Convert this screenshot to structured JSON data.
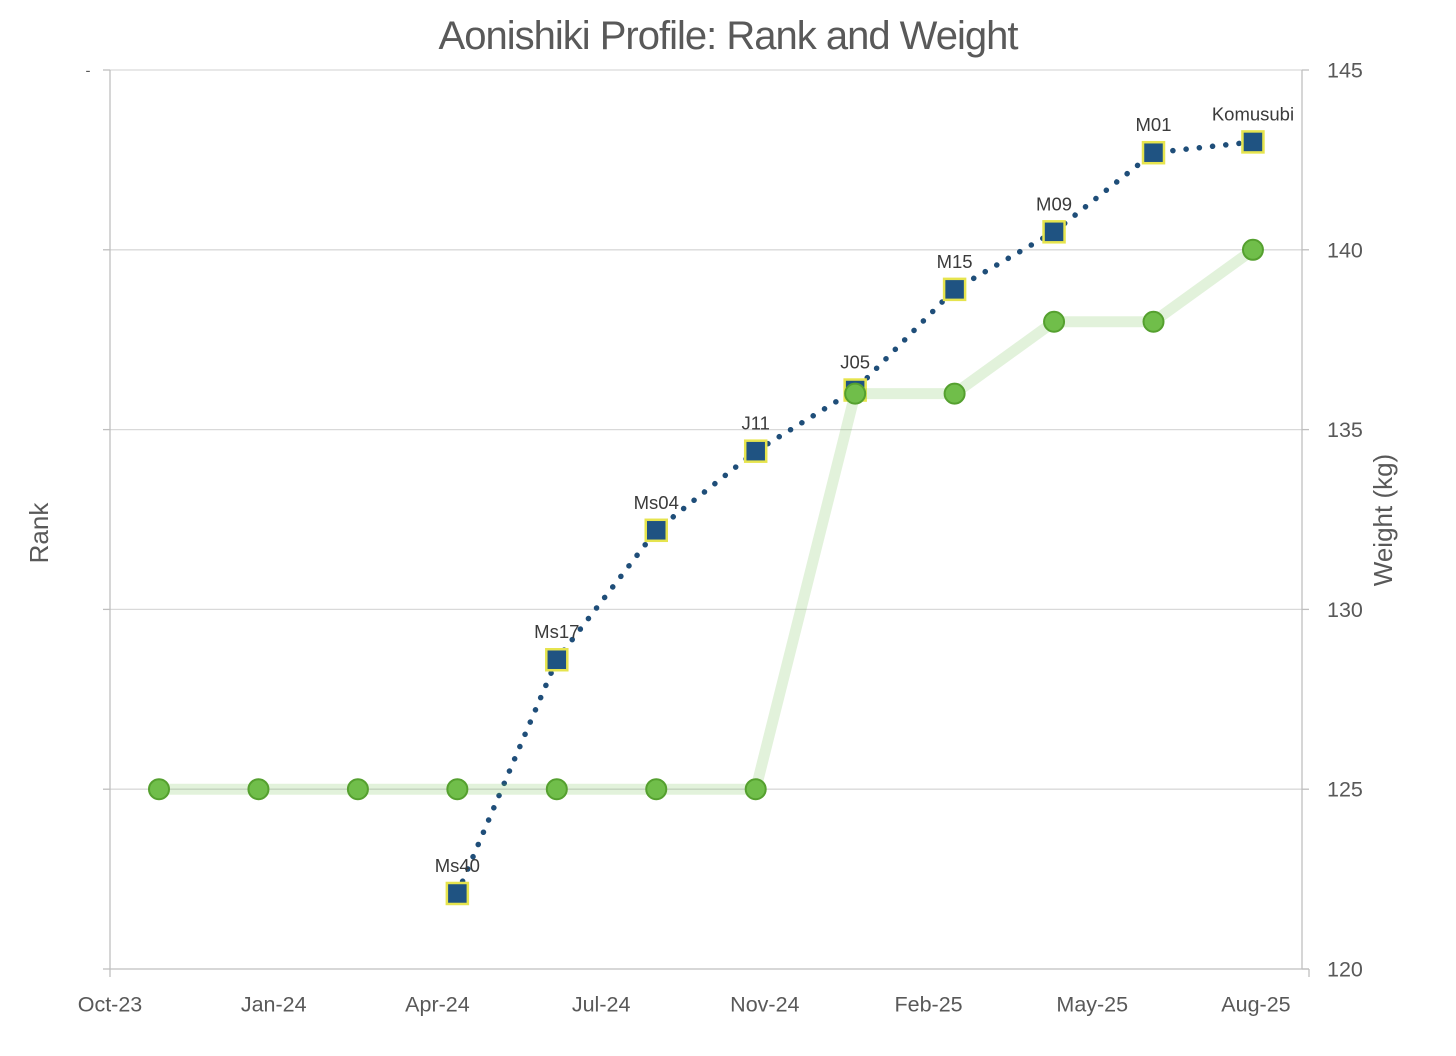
{
  "chart_data": {
    "type": "line",
    "title": "Aonishiki Profile: Rank and Weight",
    "legend": "none",
    "x_axis": {
      "tick_labels": [
        "Oct-23",
        "Jan-24",
        "Apr-24",
        "Jul-24",
        "Nov-24",
        "Feb-25",
        "May-25",
        "Aug-25"
      ],
      "n_slots": 12
    },
    "y_left": {
      "label": "Rank",
      "tick_label_shown": "-",
      "numeric_labels_hidden": true
    },
    "y_right": {
      "label": "Weight (kg)",
      "min": 120,
      "max": 145,
      "ticks": [
        145,
        140,
        135,
        130,
        125,
        120
      ],
      "grid": true
    },
    "series": [
      {
        "name": "Rank",
        "type": "line-dotted",
        "marker": "square",
        "axis": "left-hidden",
        "pos_note": "pos = plotted height read off the right (weight) axis scale, since left rank axis labels are hidden",
        "points": [
          {
            "slot": 3,
            "label": "Ms40",
            "pos": 122.1
          },
          {
            "slot": 4,
            "label": "Ms17",
            "pos": 128.6
          },
          {
            "slot": 5,
            "label": "Ms04",
            "pos": 132.2
          },
          {
            "slot": 6,
            "label": "J11",
            "pos": 134.4
          },
          {
            "slot": 7,
            "label": "J05",
            "pos": 136.1
          },
          {
            "slot": 8,
            "label": "M15",
            "pos": 138.9
          },
          {
            "slot": 9,
            "label": "M09",
            "pos": 140.5
          },
          {
            "slot": 10,
            "label": "M01",
            "pos": 142.7
          },
          {
            "slot": 11,
            "label": "Komusubi",
            "pos": 143.0
          }
        ]
      },
      {
        "name": "Weight (kg)",
        "type": "line",
        "marker": "circle",
        "axis": "right",
        "values": [
          125,
          125,
          125,
          125,
          125,
          125,
          125,
          136,
          136,
          138,
          138,
          140
        ]
      }
    ],
    "colors": {
      "rank_line": "#1F4E79",
      "rank_marker_fill": "#1F5382",
      "rank_marker_outline": "#E6E44E",
      "weight_line_rgba": "rgba(112,190,74,0.2)",
      "weight_marker_fill": "#70BE4A",
      "weight_marker_outline": "#55A02F",
      "gridline": "#D9D9D9",
      "axis_line": "#BFBFBF",
      "text": "#595959",
      "data_label_text": "#3B3B3B"
    }
  }
}
